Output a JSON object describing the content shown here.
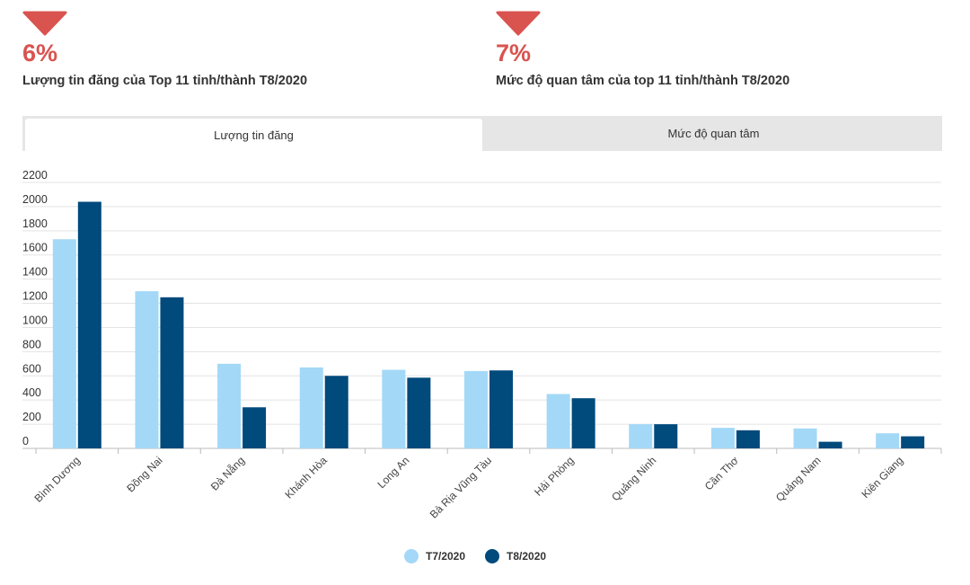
{
  "stats": [
    {
      "value": "6%",
      "caption": "Lượng tin đăng của Top 11 tỉnh/thành T8/2020",
      "arrow_color": "#d9534f",
      "icon": "down-arrow-icon"
    },
    {
      "value": "7%",
      "caption": "Mức độ quan tâm của top 11 tỉnh/thành T8/2020",
      "arrow_color": "#d9534f",
      "icon": "down-arrow-icon"
    }
  ],
  "tabs": [
    {
      "label": "Lượng tin đăng",
      "active": true
    },
    {
      "label": "Mức độ quan tâm",
      "active": false
    }
  ],
  "chart_data": {
    "type": "bar",
    "title": "",
    "xlabel": "",
    "ylabel": "",
    "ylim": [
      0,
      2200
    ],
    "yticks": [
      0,
      200,
      400,
      600,
      800,
      1000,
      1200,
      1400,
      1600,
      1800,
      2000,
      2200
    ],
    "grid": true,
    "legend_position": "bottom",
    "categories": [
      "Bình Dương",
      "Đồng Nai",
      "Đà Nẵng",
      "Khánh Hòa",
      "Long An",
      "Bà Rịa Vũng Tàu",
      "Hải Phòng",
      "Quảng Ninh",
      "Cần Thơ",
      "Quảng Nam",
      "Kiên Giang"
    ],
    "series": [
      {
        "name": "T7/2020",
        "color": "#a3d8f7",
        "values": [
          1730,
          1300,
          700,
          670,
          650,
          640,
          450,
          200,
          170,
          165,
          125
        ]
      },
      {
        "name": "T8/2020",
        "color": "#004a7c",
        "values": [
          2040,
          1250,
          340,
          600,
          585,
          645,
          415,
          200,
          150,
          55,
          100
        ]
      }
    ]
  }
}
